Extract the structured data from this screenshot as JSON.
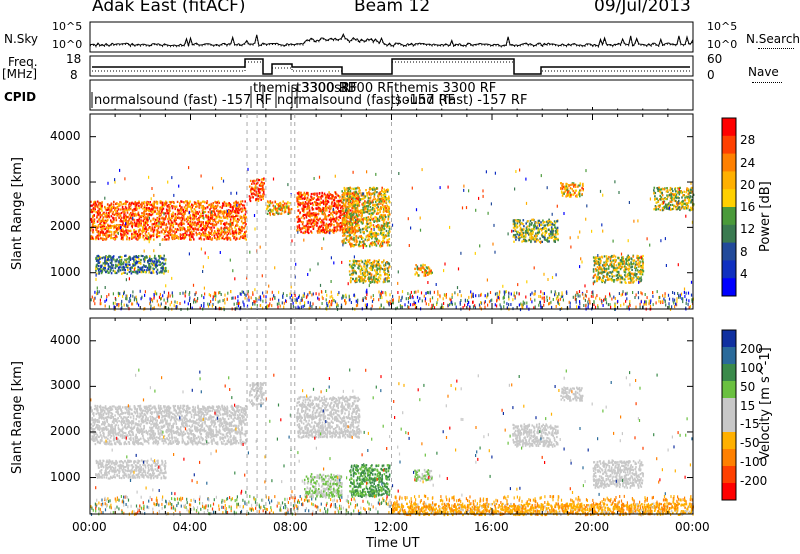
{
  "header": {
    "title": "Adak East (fitACF)",
    "beam": "Beam 12",
    "date": "09/Jul/2013"
  },
  "top_panels": {
    "nsky_label": "N.Sky",
    "nsky_ticks": [
      "10^5",
      "10^0"
    ],
    "nsearch_label": "N.Search",
    "freq_label_1": "Freq.",
    "freq_label_2": "[MHz]",
    "freq_ticks": [
      "18",
      "8"
    ],
    "nave_ticks": [
      "60",
      "0"
    ],
    "nave_label": "Nave",
    "cpid_label": "CPID",
    "cpid_segments": [
      {
        "label": "normalsound (fast) -157 RF",
        "start": 0.0
      },
      {
        "label": "themis 3300 RF",
        "start": 6.25
      },
      {
        "label": "t3300sRF",
        "start": 7.0
      },
      {
        "label": "normalsound (fast) -157 RF",
        "start": 8.0
      },
      {
        "label": "3300 RF",
        "start": 9.0
      },
      {
        "label": "themis 3300 RF",
        "start": 12.0
      },
      {
        "label": "sound (fast) -157 RF",
        "start": 10.3
      }
    ]
  },
  "power_colorbar": {
    "title": "Power [dB]",
    "ticks": [
      "28",
      "24",
      "20",
      "16",
      "12",
      "8",
      "4"
    ],
    "colors": [
      "#ff0000",
      "#ff4000",
      "#ff8000",
      "#ffb000",
      "#ffd000",
      "#4a9a3a",
      "#3a7a50",
      "#224a9a",
      "#1030c0",
      "#0000ff"
    ]
  },
  "velocity_colorbar": {
    "title": "Velocity [m s^-1]",
    "ticks": [
      "200",
      "100",
      "50",
      "15",
      "-15",
      "-50",
      "-100",
      "-200"
    ],
    "colors": [
      "#1030a0",
      "#2a6a9a",
      "#3a8a4a",
      "#6ac040",
      "#c8c8c8",
      "#c8c8c8",
      "#ffb000",
      "#ff8000",
      "#ff4000",
      "#ff0000"
    ]
  },
  "axes": {
    "ylabel": "Slant Range [km]",
    "yticks": [
      "4000",
      "3000",
      "2000",
      "1000"
    ],
    "xticks": [
      "00:00",
      "04:00",
      "08:00",
      "12:00",
      "16:00",
      "20:00",
      "00:00"
    ],
    "xlabel": "Time UT"
  },
  "chart_data": [
    {
      "type": "heatmap",
      "title": "Power [dB]",
      "xlabel": "Time UT",
      "ylabel": "Slant Range [km]",
      "xlim": [
        0,
        24
      ],
      "ylim": [
        200,
        4500
      ],
      "zlim": [
        0,
        30
      ],
      "blobs": [
        {
          "t0": 0.0,
          "t1": 6.2,
          "r0": 1750,
          "r1": 2600,
          "z": 24
        },
        {
          "t0": 0.2,
          "t1": 3.0,
          "r0": 1000,
          "r1": 1400,
          "z": 10
        },
        {
          "t0": 6.3,
          "t1": 6.9,
          "r0": 2600,
          "r1": 3100,
          "z": 26
        },
        {
          "t0": 7.0,
          "t1": 8.0,
          "r0": 2300,
          "r1": 2600,
          "z": 20
        },
        {
          "t0": 8.2,
          "t1": 10.7,
          "r0": 1900,
          "r1": 2800,
          "z": 26
        },
        {
          "t0": 10.0,
          "t1": 11.9,
          "r0": 1600,
          "r1": 2900,
          "z": 18
        },
        {
          "t0": 10.3,
          "t1": 11.9,
          "r0": 800,
          "r1": 1300,
          "z": 16
        },
        {
          "t0": 12.9,
          "t1": 13.6,
          "r0": 950,
          "r1": 1200,
          "z": 18
        },
        {
          "t0": 16.8,
          "t1": 18.6,
          "r0": 1700,
          "r1": 2200,
          "z": 14
        },
        {
          "t0": 18.7,
          "t1": 19.6,
          "r0": 2700,
          "r1": 3000,
          "z": 20
        },
        {
          "t0": 20.0,
          "t1": 22.0,
          "r0": 800,
          "r1": 1400,
          "z": 16
        },
        {
          "t0": 22.4,
          "t1": 24.0,
          "r0": 2400,
          "r1": 2900,
          "z": 16
        }
      ]
    },
    {
      "type": "heatmap",
      "title": "Velocity [m s^-1]",
      "xlabel": "Time UT",
      "ylabel": "Slant Range [km]",
      "xlim": [
        0,
        24
      ],
      "ylim": [
        200,
        4500
      ],
      "zlim": [
        -200,
        200
      ],
      "blobs": [
        {
          "t0": 0.0,
          "t1": 6.2,
          "r0": 1750,
          "r1": 2600,
          "z": 0
        },
        {
          "t0": 0.2,
          "t1": 3.0,
          "r0": 1000,
          "r1": 1400,
          "z": 0
        },
        {
          "t0": 6.3,
          "t1": 6.9,
          "r0": 2600,
          "r1": 3100,
          "z": 0
        },
        {
          "t0": 8.2,
          "t1": 10.7,
          "r0": 1900,
          "r1": 2800,
          "z": 0
        },
        {
          "t0": 10.3,
          "t1": 11.9,
          "r0": 600,
          "r1": 1300,
          "z": 80
        },
        {
          "t0": 8.5,
          "t1": 10.0,
          "r0": 600,
          "r1": 1100,
          "z": 40
        },
        {
          "t0": 12.9,
          "t1": 13.6,
          "r0": 950,
          "r1": 1200,
          "z": 40
        },
        {
          "t0": 16.8,
          "t1": 18.6,
          "r0": 1700,
          "r1": 2200,
          "z": 0
        },
        {
          "t0": 18.7,
          "t1": 19.6,
          "r0": 2700,
          "r1": 3000,
          "z": 0
        },
        {
          "t0": 20.0,
          "t1": 22.0,
          "r0": 800,
          "r1": 1400,
          "z": 0
        },
        {
          "t0": 12.0,
          "t1": 24.0,
          "r0": 200,
          "r1": 450,
          "z": -60
        }
      ]
    }
  ]
}
